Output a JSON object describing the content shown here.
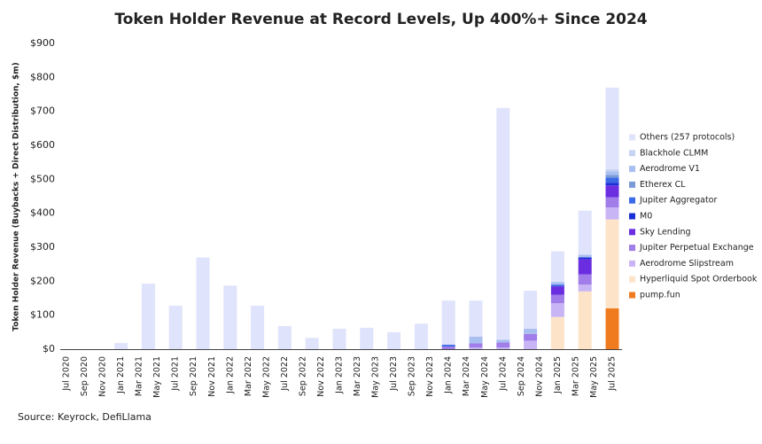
{
  "chart_data": {
    "type": "bar",
    "stacked": true,
    "title": "Token Holder Revenue at Record Levels, Up 400%+ Since 2024",
    "y_label": "Token Holder Revenue (Buybacks + Direct Distribution, $m)",
    "source": "Source: Keyrock, DefiLlama",
    "categories": [
      "Jul 2020",
      null,
      "Sep 2020",
      null,
      "Nov 2020",
      null,
      "Jan 2021",
      null,
      "Mar 2021",
      null,
      "May 2021",
      null,
      "Jul 2021",
      null,
      "Sep 2021",
      null,
      "Nov 2021",
      null,
      "Jan 2022",
      null,
      "Mar 2022",
      null,
      "May 2022",
      null,
      "Jul 2022",
      null,
      "Sep 2022",
      null,
      "Nov 2022",
      null,
      "Jan 2023",
      null,
      "Mar 2023",
      null,
      "May 2023",
      null,
      "Jul 2023",
      null,
      "Sep 2023",
      null,
      "Nov 2023",
      null,
      "Jan 2024",
      null,
      "Mar 2024",
      null,
      "May 2024",
      null,
      "Jul 2024",
      null,
      "Sep 2024",
      null,
      "Nov 2024",
      null,
      "Jan 2025",
      null,
      "Mar 2025",
      null,
      "May 2025",
      null,
      "Jul 2025"
    ],
    "ylim": [
      0,
      900
    ],
    "yticks": [
      {
        "value": 0,
        "label": "$0"
      },
      {
        "value": 100,
        "label": "$100"
      },
      {
        "value": 200,
        "label": "$200"
      },
      {
        "value": 300,
        "label": "$300"
      },
      {
        "value": 400,
        "label": "$400"
      },
      {
        "value": 500,
        "label": "$500"
      },
      {
        "value": 600,
        "label": "$600"
      },
      {
        "value": 700,
        "label": "$700"
      },
      {
        "value": 800,
        "label": "$800"
      },
      {
        "value": 900,
        "label": "$900"
      }
    ],
    "series": [
      {
        "name": "pump.fun",
        "color": "#f07b1e",
        "values": [
          null,
          null,
          null,
          null,
          null,
          null,
          null,
          null,
          null,
          null,
          null,
          null,
          null,
          null,
          null,
          null,
          null,
          null,
          null,
          null,
          null,
          null,
          null,
          null,
          null,
          null,
          null,
          null,
          null,
          null,
          null,
          null,
          null,
          null,
          null,
          null,
          null,
          null,
          null,
          null,
          null,
          null,
          null,
          null,
          null,
          null,
          null,
          null,
          null,
          null,
          null,
          null,
          null,
          null,
          null,
          null,
          null,
          null,
          null,
          null,
          120
        ]
      },
      {
        "name": "Hyperliquid Spot Orderbook",
        "color": "#fde3c8",
        "values": [
          null,
          null,
          null,
          null,
          null,
          null,
          null,
          null,
          null,
          null,
          null,
          null,
          null,
          null,
          null,
          null,
          null,
          null,
          null,
          null,
          null,
          null,
          null,
          null,
          null,
          null,
          null,
          null,
          null,
          null,
          null,
          null,
          null,
          null,
          null,
          null,
          null,
          null,
          null,
          null,
          null,
          null,
          null,
          null,
          null,
          null,
          null,
          null,
          null,
          null,
          null,
          null,
          null,
          null,
          95,
          null,
          null,
          170,
          null,
          null,
          262
        ]
      },
      {
        "name": "Aerodrome Slipstream",
        "color": "#c8b5f5",
        "values": [
          null,
          null,
          null,
          null,
          null,
          null,
          null,
          null,
          null,
          null,
          null,
          null,
          null,
          null,
          null,
          null,
          null,
          null,
          null,
          null,
          null,
          null,
          null,
          null,
          null,
          null,
          null,
          null,
          null,
          null,
          null,
          null,
          null,
          null,
          null,
          null,
          null,
          null,
          null,
          null,
          null,
          null,
          null,
          null,
          null,
          5,
          null,
          null,
          5,
          null,
          null,
          25,
          null,
          null,
          40,
          null,
          null,
          20,
          null,
          null,
          35
        ]
      },
      {
        "name": "Jupiter Perpetual Exchange",
        "color": "#a07de8",
        "values": [
          null,
          null,
          null,
          null,
          null,
          null,
          null,
          null,
          null,
          null,
          null,
          null,
          null,
          null,
          null,
          null,
          null,
          null,
          null,
          null,
          null,
          null,
          null,
          null,
          null,
          null,
          null,
          null,
          null,
          null,
          null,
          null,
          null,
          null,
          null,
          null,
          null,
          null,
          null,
          null,
          null,
          null,
          8,
          null,
          null,
          12,
          null,
          null,
          15,
          null,
          null,
          20,
          null,
          null,
          25,
          null,
          null,
          30,
          null,
          null,
          30
        ]
      },
      {
        "name": "Sky Lending",
        "color": "#6a2ee0",
        "values": [
          null,
          null,
          null,
          null,
          null,
          null,
          null,
          null,
          null,
          null,
          null,
          null,
          null,
          null,
          null,
          null,
          null,
          null,
          null,
          null,
          null,
          null,
          null,
          null,
          null,
          null,
          null,
          null,
          null,
          null,
          null,
          null,
          null,
          null,
          null,
          null,
          null,
          null,
          null,
          null,
          null,
          null,
          null,
          null,
          null,
          null,
          null,
          null,
          null,
          null,
          null,
          null,
          null,
          null,
          25,
          null,
          null,
          45,
          null,
          null,
          35
        ]
      },
      {
        "name": "M0",
        "color": "#1a2fd6",
        "values": [
          null,
          null,
          null,
          null,
          null,
          null,
          null,
          null,
          null,
          null,
          null,
          null,
          null,
          null,
          null,
          null,
          null,
          null,
          null,
          null,
          null,
          null,
          null,
          null,
          null,
          null,
          null,
          null,
          null,
          null,
          null,
          null,
          null,
          null,
          null,
          null,
          null,
          null,
          null,
          null,
          null,
          null,
          null,
          null,
          null,
          null,
          null,
          null,
          null,
          null,
          null,
          null,
          null,
          null,
          null,
          null,
          null,
          5,
          null,
          null,
          8
        ]
      },
      {
        "name": "Jupiter Aggregator",
        "color": "#3a6ae6",
        "values": [
          null,
          null,
          null,
          null,
          null,
          null,
          null,
          null,
          null,
          null,
          null,
          null,
          null,
          null,
          null,
          null,
          null,
          null,
          null,
          null,
          null,
          null,
          null,
          null,
          null,
          null,
          null,
          null,
          null,
          null,
          null,
          null,
          null,
          null,
          null,
          null,
          null,
          null,
          null,
          null,
          null,
          null,
          5,
          null,
          null,
          null,
          null,
          null,
          null,
          null,
          null,
          null,
          null,
          null,
          5,
          null,
          null,
          null,
          null,
          null,
          15
        ]
      },
      {
        "name": "Etherex CL",
        "color": "#7b9ad8",
        "values": [
          null,
          null,
          null,
          null,
          null,
          null,
          null,
          null,
          null,
          null,
          null,
          null,
          null,
          null,
          null,
          null,
          null,
          null,
          null,
          null,
          null,
          null,
          null,
          null,
          null,
          null,
          null,
          null,
          null,
          null,
          null,
          null,
          null,
          null,
          null,
          null,
          null,
          null,
          null,
          null,
          null,
          null,
          null,
          null,
          null,
          null,
          null,
          null,
          null,
          null,
          null,
          null,
          null,
          null,
          null,
          null,
          null,
          null,
          null,
          null,
          8
        ]
      },
      {
        "name": "Aerodrome V1",
        "color": "#a9bff0",
        "values": [
          null,
          null,
          null,
          null,
          null,
          null,
          null,
          null,
          null,
          null,
          null,
          null,
          null,
          null,
          null,
          null,
          null,
          null,
          null,
          null,
          null,
          null,
          null,
          null,
          null,
          null,
          null,
          null,
          null,
          null,
          null,
          null,
          null,
          null,
          null,
          null,
          null,
          null,
          null,
          null,
          null,
          null,
          null,
          null,
          null,
          20,
          null,
          null,
          8,
          null,
          null,
          15,
          null,
          null,
          8,
          null,
          null,
          8,
          null,
          null,
          10
        ]
      },
      {
        "name": "Blackhole CLMM",
        "color": "#c6d3f3",
        "values": [
          null,
          null,
          null,
          null,
          null,
          null,
          null,
          null,
          null,
          null,
          null,
          null,
          null,
          null,
          null,
          null,
          null,
          null,
          null,
          null,
          null,
          null,
          null,
          null,
          null,
          null,
          null,
          null,
          null,
          null,
          null,
          null,
          null,
          null,
          null,
          null,
          null,
          null,
          null,
          null,
          null,
          null,
          null,
          null,
          null,
          null,
          null,
          null,
          null,
          null,
          null,
          null,
          null,
          null,
          null,
          null,
          null,
          null,
          null,
          null,
          7
        ]
      },
      {
        "name": "Others (257 protocols)",
        "color": "#dfe3fb",
        "values": [
          null,
          null,
          null,
          null,
          null,
          null,
          18,
          null,
          null,
          193,
          null,
          null,
          128,
          null,
          null,
          270,
          null,
          null,
          187,
          null,
          null,
          128,
          null,
          null,
          68,
          null,
          null,
          33,
          null,
          null,
          60,
          null,
          null,
          63,
          null,
          null,
          50,
          null,
          null,
          75,
          null,
          null,
          130,
          null,
          null,
          106,
          null,
          null,
          682,
          null,
          null,
          112,
          null,
          null,
          90,
          null,
          null,
          130,
          null,
          null,
          240
        ]
      }
    ]
  }
}
